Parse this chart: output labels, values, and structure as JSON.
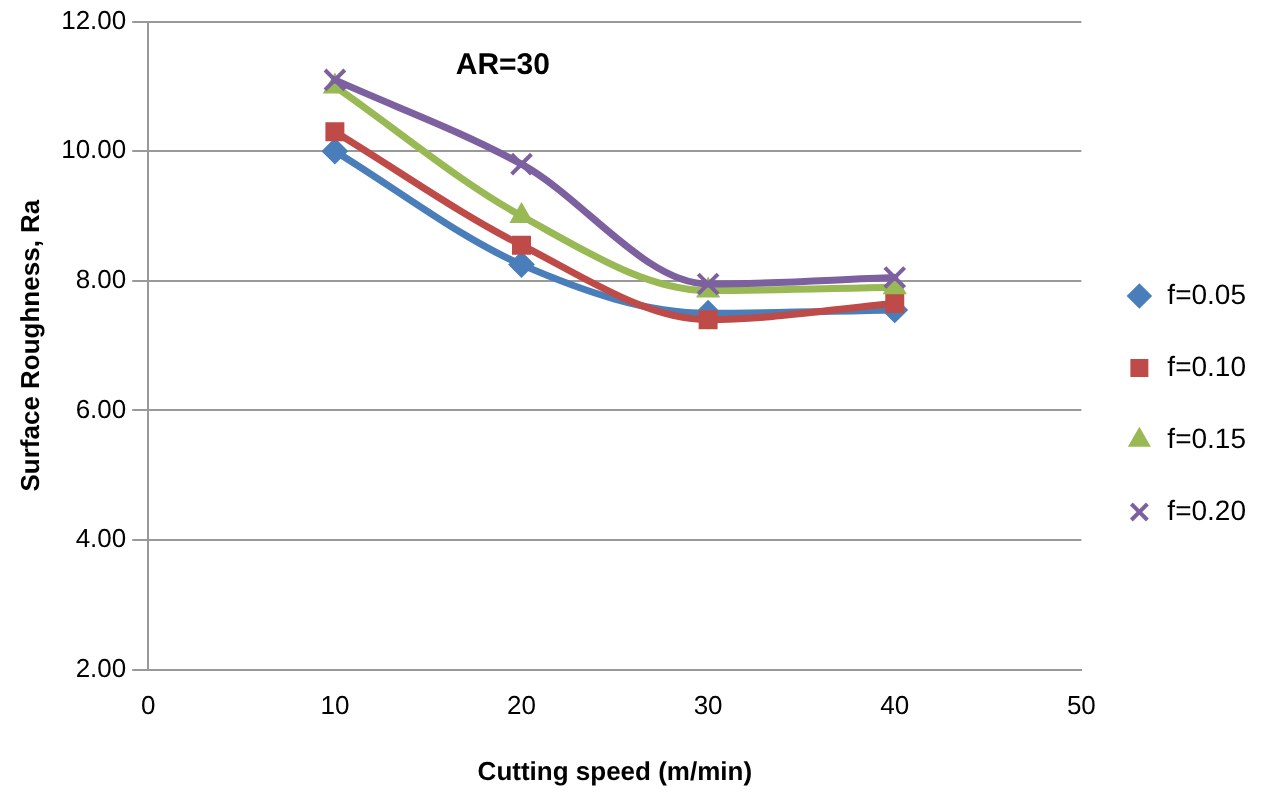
{
  "chart_data": {
    "type": "line",
    "title": "AR=30",
    "xlabel": "Cutting speed (m/min)",
    "ylabel": "Surface Roughness, Ra",
    "x": [
      10,
      20,
      30,
      40
    ],
    "xlim": [
      0,
      50
    ],
    "xticks": [
      0,
      10,
      20,
      30,
      40,
      50
    ],
    "ylim": [
      2,
      12
    ],
    "yticks": [
      {
        "value": 2,
        "label": "2.00"
      },
      {
        "value": 4,
        "label": "4.00"
      },
      {
        "value": 6,
        "label": "6.00"
      },
      {
        "value": 8,
        "label": "8.00"
      },
      {
        "value": 10,
        "label": "10.00"
      },
      {
        "value": 12,
        "label": "12.00"
      }
    ],
    "grid": "y",
    "legend": "right",
    "series": [
      {
        "name": "f=0.05",
        "color": "#4a7ebb",
        "marker": "diamond",
        "values": [
          10.0,
          8.25,
          7.5,
          7.55
        ]
      },
      {
        "name": "f=0.10",
        "color": "#be4b48",
        "marker": "square",
        "values": [
          10.3,
          8.55,
          7.4,
          7.65
        ]
      },
      {
        "name": "f=0.15",
        "color": "#98b954",
        "marker": "triangle",
        "values": [
          11.0,
          9.0,
          7.85,
          7.9
        ]
      },
      {
        "name": "f=0.20",
        "color": "#7d60a0",
        "marker": "cross",
        "values": [
          11.1,
          9.8,
          7.95,
          8.05
        ]
      }
    ]
  }
}
